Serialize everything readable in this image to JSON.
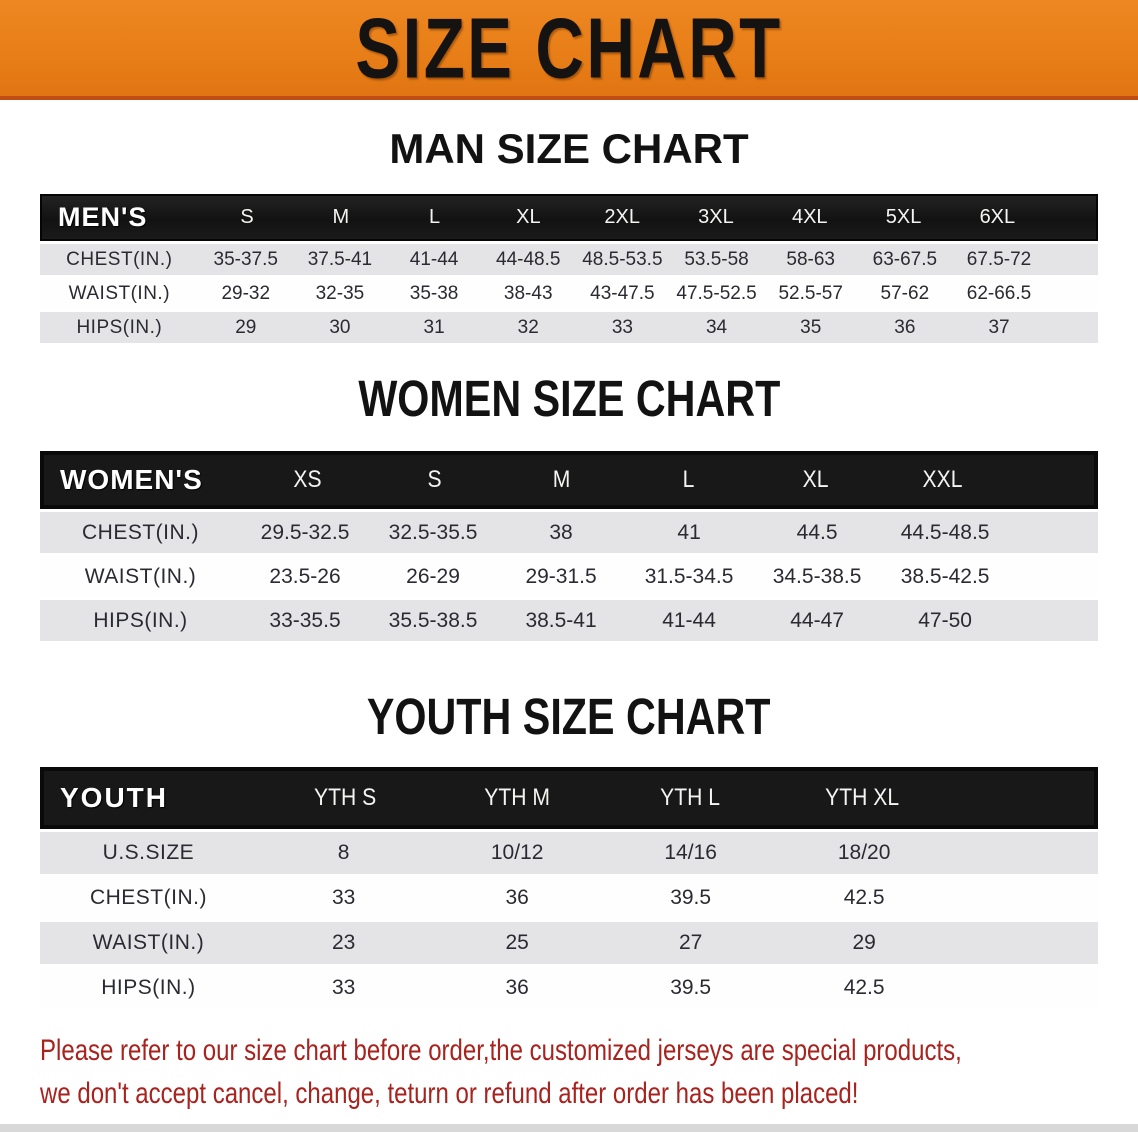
{
  "banner": {
    "title": "SIZE CHART"
  },
  "sections": [
    {
      "heading": "MAN SIZE CHART",
      "table": {
        "header_label": "MEN'S",
        "columns": [
          "S",
          "M",
          "L",
          "XL",
          "2XL",
          "3XL",
          "4XL",
          "5XL",
          "6XL"
        ],
        "rows": [
          {
            "label": "CHEST(IN.)",
            "values": [
              "35-37.5",
              "37.5-41",
              "41-44",
              "44-48.5",
              "48.5-53.5",
              "53.5-58",
              "58-63",
              "63-67.5",
              "67.5-72"
            ]
          },
          {
            "label": "WAIST(IN.)",
            "values": [
              "29-32",
              "32-35",
              "35-38",
              "38-43",
              "43-47.5",
              "47.5-52.5",
              "52.5-57",
              "57-62",
              "62-66.5"
            ]
          },
          {
            "label": "HIPS(IN.)",
            "values": [
              "29",
              "30",
              "31",
              "32",
              "33",
              "34",
              "35",
              "36",
              "37"
            ]
          }
        ]
      }
    },
    {
      "heading": "WOMEN SIZE CHART",
      "table": {
        "header_label": "WOMEN'S",
        "columns": [
          "XS",
          "S",
          "M",
          "L",
          "XL",
          "XXL"
        ],
        "rows": [
          {
            "label": "CHEST(IN.)",
            "values": [
              "29.5-32.5",
              "32.5-35.5",
              "38",
              "41",
              "44.5",
              "44.5-48.5"
            ]
          },
          {
            "label": "WAIST(IN.)",
            "values": [
              "23.5-26",
              "26-29",
              "29-31.5",
              "31.5-34.5",
              "34.5-38.5",
              "38.5-42.5"
            ]
          },
          {
            "label": "HIPS(IN.)",
            "values": [
              "33-35.5",
              "35.5-38.5",
              "38.5-41",
              "41-44",
              "44-47",
              "47-50"
            ]
          }
        ]
      }
    },
    {
      "heading": "YOUTH SIZE CHART",
      "table": {
        "header_label": "YOUTH",
        "columns": [
          "YTH S",
          "YTH M",
          "YTH L",
          "YTH XL"
        ],
        "rows": [
          {
            "label": "U.S.SIZE",
            "values": [
              "8",
              "10/12",
              "14/16",
              "18/20"
            ]
          },
          {
            "label": "CHEST(IN.)",
            "values": [
              "33",
              "36",
              "39.5",
              "42.5"
            ]
          },
          {
            "label": "WAIST(IN.)",
            "values": [
              "23",
              "25",
              "27",
              "29"
            ]
          },
          {
            "label": "HIPS(IN.)",
            "values": [
              "33",
              "36",
              "39.5",
              "42.5"
            ]
          }
        ]
      }
    }
  ],
  "footer": {
    "line1": "Please refer to our size chart before order,the customized jerseys are special products,",
    "line2": "we don't accept cancel, change, teturn or refund after order has been placed!"
  },
  "colors": {
    "banner_orange": "#e67c15",
    "banner_border": "#c04c16",
    "header_black": "#161616",
    "row_stripe_gray": "#e4e4e6",
    "note_red": "#a8221e"
  }
}
